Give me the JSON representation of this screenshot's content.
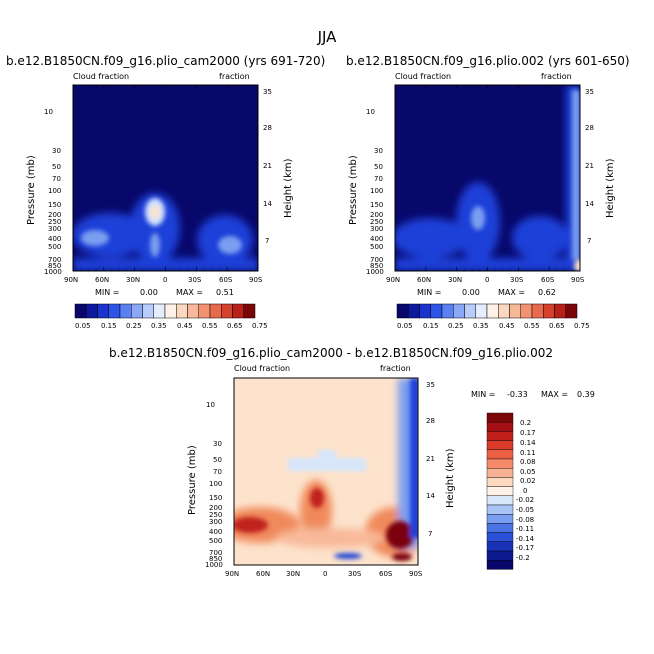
{
  "figure": {
    "title": "JJA",
    "colors": {
      "deep_blue": "#08086b",
      "blue": "#1e40d8",
      "light_blue": "#a9c4f5",
      "cream": "#fde3cc",
      "orange": "#f08a5c",
      "red": "#c0201c",
      "dark_red": "#7a0608"
    }
  },
  "chart_data": [
    {
      "type": "heatmap",
      "id": "top_left",
      "title": "b.e12.B1850CN.f09_g16.plio_cam2000 (yrs 691-720)",
      "left_label": "Cloud fraction",
      "right_label": "fraction",
      "xlabel": "",
      "ylabel": "Pressure (mb)",
      "ylabel_right": "Height (km)",
      "x_ticks": [
        "90N",
        "60N",
        "30N",
        "0",
        "30S",
        "60S",
        "90S"
      ],
      "y_ticks": [
        "10",
        "30",
        "50",
        "70",
        "100",
        "150",
        "200",
        "250",
        "300",
        "400",
        "500",
        "700",
        "850",
        "1000"
      ],
      "y_ticks_right": [
        "35",
        "28",
        "21",
        "14",
        "7"
      ],
      "stats": {
        "min_label": "MIN =",
        "min_value": "0.00",
        "max_label": "MAX =",
        "max_value": "0.51"
      },
      "colorbar_labels": [
        "0.05",
        "0.15",
        "0.25",
        "0.35",
        "0.45",
        "0.55",
        "0.65",
        "0.75"
      ],
      "features": [
        {
          "lat": -10,
          "p": 175,
          "value": 0.51
        },
        {
          "lat": -10,
          "p": 500,
          "value": 0.25
        },
        {
          "lat": -55,
          "p": 400,
          "value": 0.25
        },
        {
          "lat": 50,
          "p": 400,
          "value": 0.2
        }
      ]
    },
    {
      "type": "heatmap",
      "id": "top_right",
      "title": "b.e12.B1850CN.f09_g16.plio.002 (yrs 601-650)",
      "left_label": "Cloud fraction",
      "right_label": "fraction",
      "xlabel": "",
      "ylabel": "Pressure (mb)",
      "ylabel_right": "Height (km)",
      "x_ticks": [
        "90N",
        "60N",
        "30N",
        "0",
        "30S",
        "60S",
        "90S"
      ],
      "y_ticks": [
        "10",
        "30",
        "50",
        "70",
        "100",
        "150",
        "200",
        "250",
        "300",
        "400",
        "500",
        "700",
        "850",
        "1000"
      ],
      "y_ticks_right": [
        "35",
        "28",
        "21",
        "14",
        "7"
      ],
      "stats": {
        "min_label": "MIN =",
        "min_value": "0.00",
        "max_label": "MAX =",
        "max_value": "0.62"
      },
      "colorbar_labels": [
        "0.05",
        "0.15",
        "0.25",
        "0.35",
        "0.45",
        "0.55",
        "0.65",
        "0.75"
      ],
      "features": [
        {
          "lat": -10,
          "p": 200,
          "value": 0.3
        },
        {
          "lat": -85,
          "p": 100,
          "value": 0.35
        },
        {
          "lat": -85,
          "p": 1000,
          "value": 0.62
        }
      ]
    },
    {
      "type": "heatmap",
      "id": "difference",
      "title": "b.e12.B1850CN.f09_g16.plio_cam2000 - b.e12.B1850CN.f09_g16.plio.002",
      "left_label": "Cloud fraction",
      "right_label": "fraction",
      "xlabel": "",
      "ylabel": "Pressure (mb)",
      "ylabel_right": "Height (km)",
      "x_ticks": [
        "90N",
        "60N",
        "30N",
        "0",
        "30S",
        "60S",
        "90S"
      ],
      "y_ticks": [
        "10",
        "30",
        "50",
        "70",
        "100",
        "150",
        "200",
        "250",
        "300",
        "400",
        "500",
        "700",
        "850",
        "1000"
      ],
      "y_ticks_right": [
        "35",
        "28",
        "21",
        "14",
        "7"
      ],
      "stats": {
        "min_label": "MIN =",
        "min_value": "-0.33",
        "max_label": "MAX =",
        "max_value": "0.39"
      },
      "colorbar_labels": [
        "0.2",
        "0.17",
        "0.14",
        "0.11",
        "0.08",
        "0.05",
        "0.02",
        "0",
        "-0.02",
        "-0.05",
        "-0.08",
        "-0.11",
        "-0.14",
        "-0.17",
        "-0.2"
      ],
      "features": [
        {
          "lat": -10,
          "p": 175,
          "value": 0.2
        },
        {
          "lat": 75,
          "p": 350,
          "value": 0.14
        },
        {
          "lat": -75,
          "p": 500,
          "value": 0.2
        },
        {
          "lat": -85,
          "p": 60,
          "value": -0.2
        }
      ]
    }
  ]
}
